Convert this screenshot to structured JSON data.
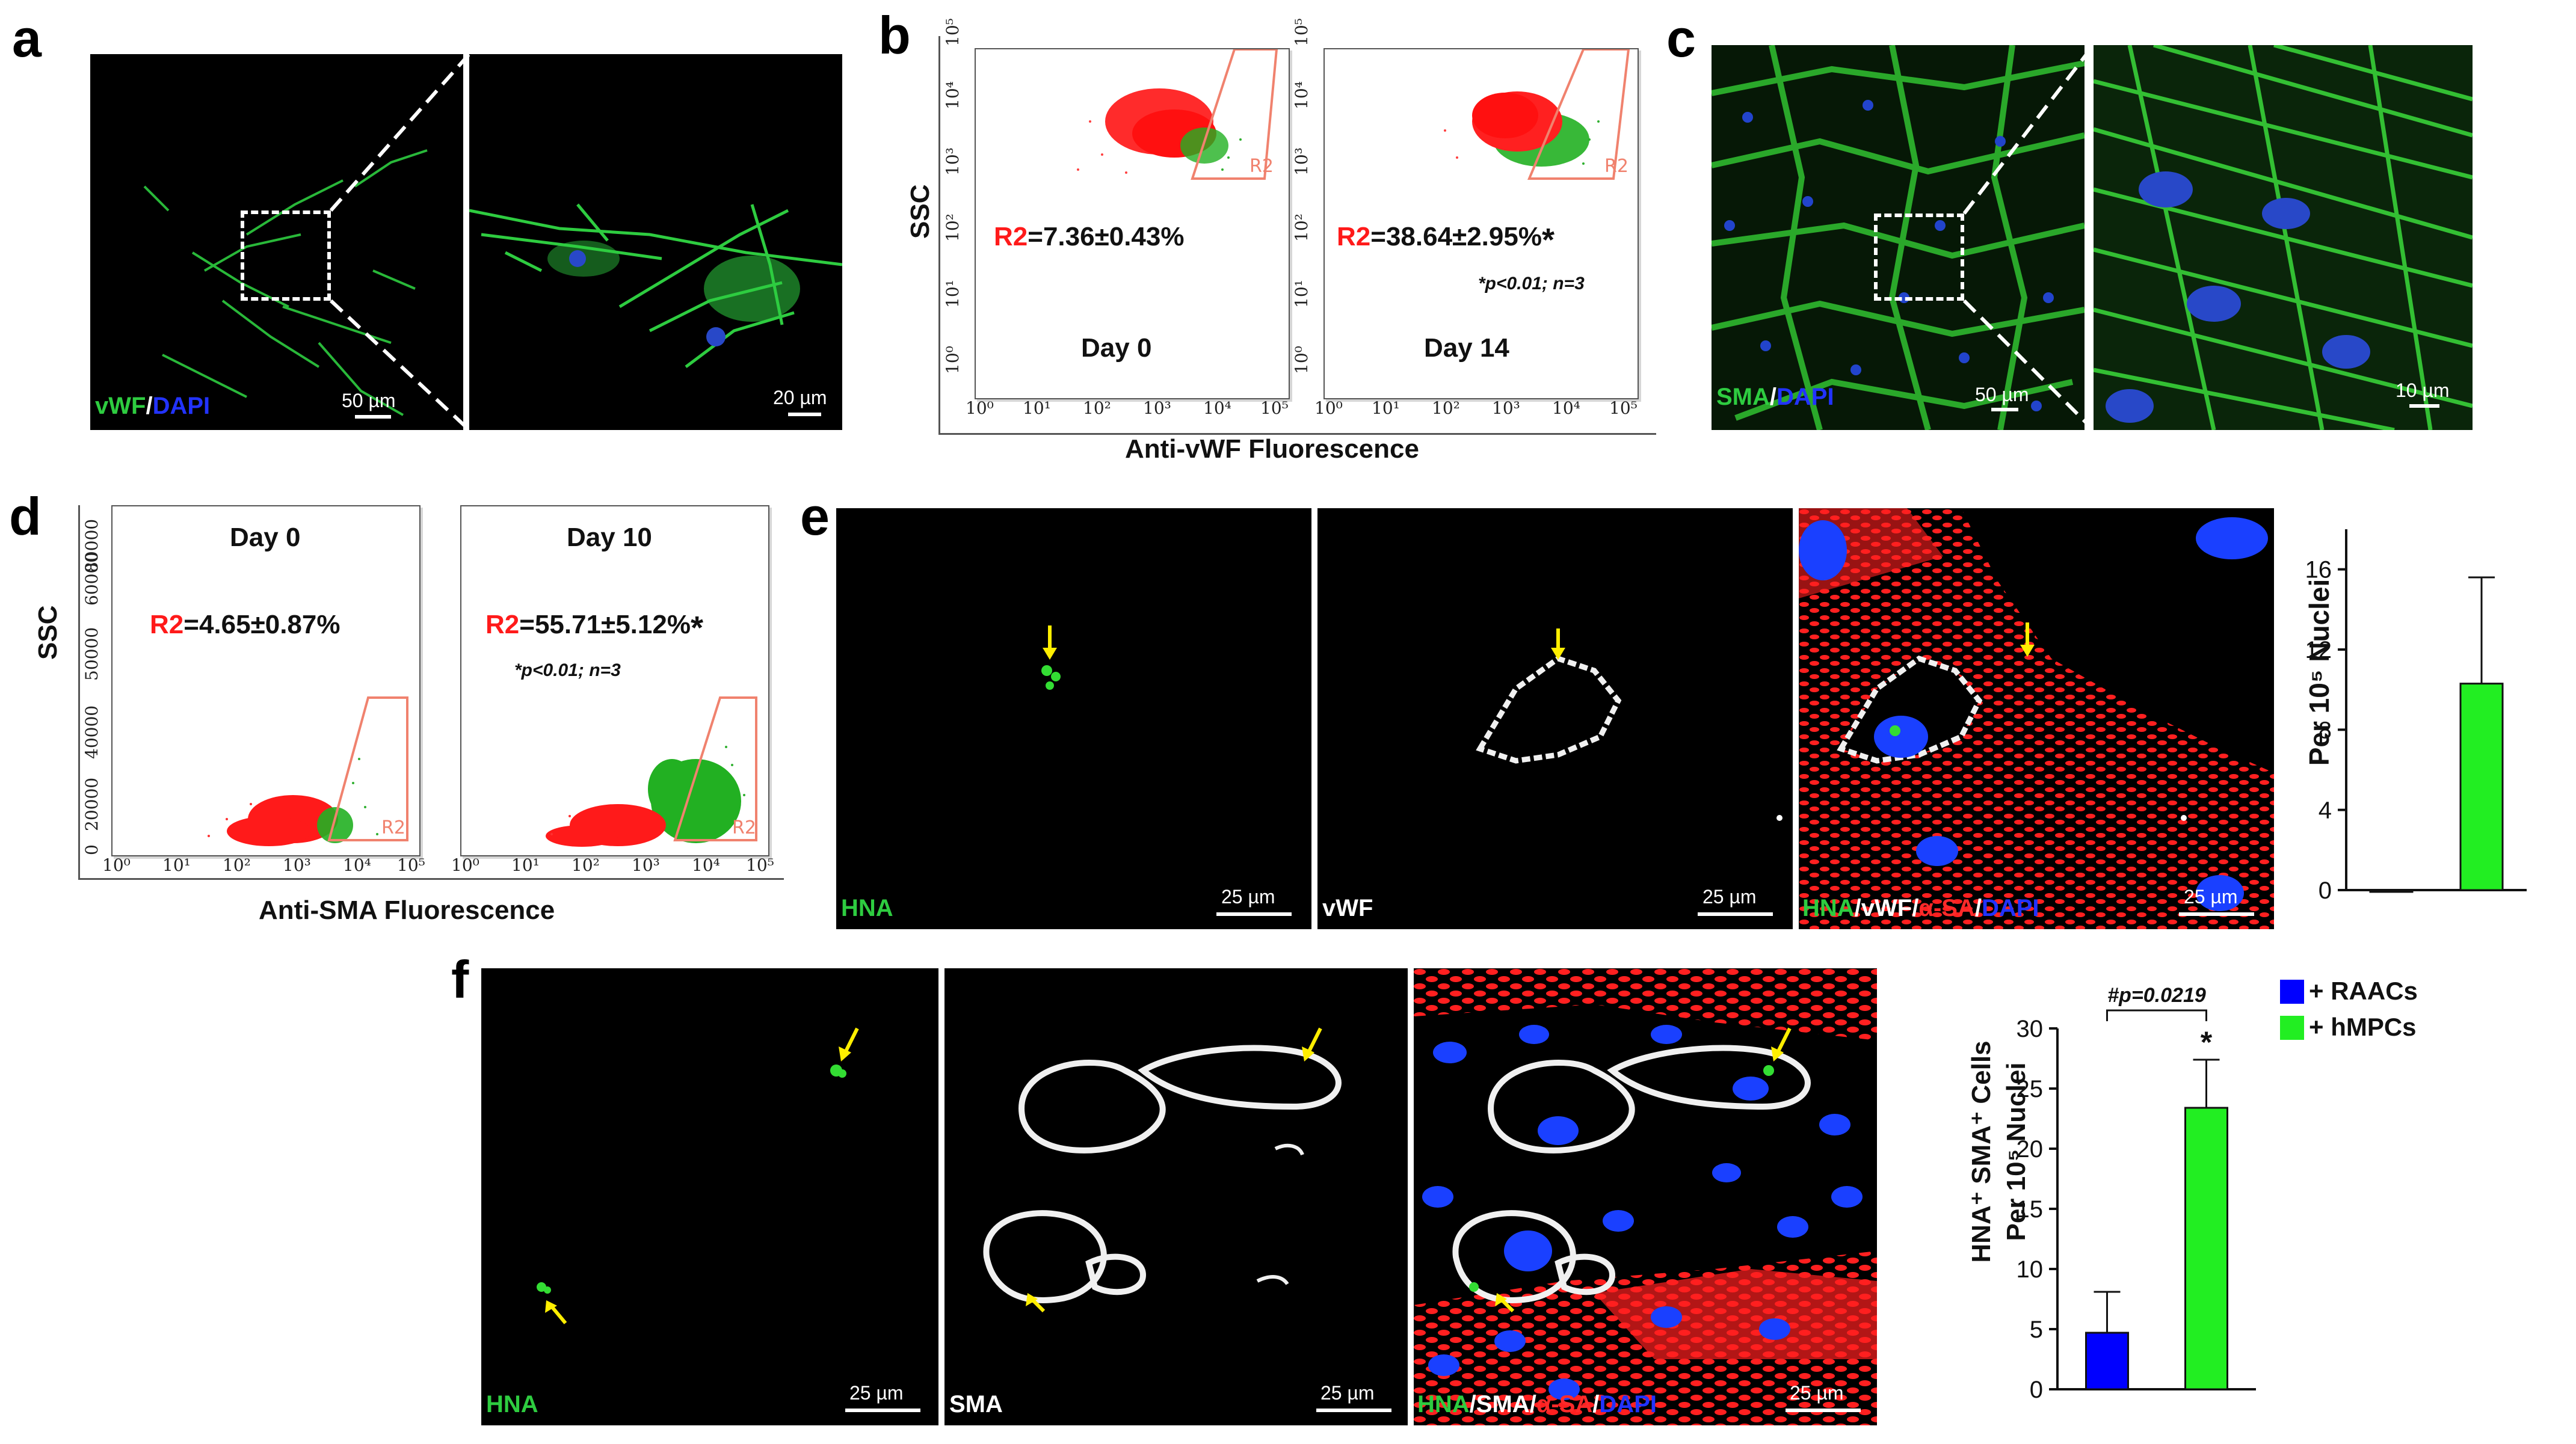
{
  "figure": {
    "panels": {
      "a": {
        "letter": "a",
        "stain": [
          {
            "text": "vWF",
            "color": "#2ecc40"
          },
          {
            "text": "/",
            "color": "#ffffff"
          },
          {
            "text": "DAPI",
            "color": "#2233ff"
          }
        ],
        "scale_left": "50 µm",
        "scale_right": "20 µm"
      },
      "b": {
        "letter": "b",
        "ylabel": "SSC",
        "xlabel": "Anti-vWF Fluorescence",
        "plots": [
          {
            "r2_prefix": "R2",
            "r2_value": "=7.36±0.43%",
            "star": "",
            "day": "Day 0",
            "note": "",
            "gate_label": "R2"
          },
          {
            "r2_prefix": "R2",
            "r2_value": "=38.64±2.95%",
            "star": "*",
            "day": "Day 14",
            "note": "*p<0.01; n=3",
            "gate_label": "R2"
          }
        ],
        "xticks": [
          "10^0",
          "10^1",
          "10^2",
          "10^3",
          "10^4",
          "10^5"
        ],
        "yticks": [
          "10^0",
          "10^1",
          "10^2",
          "10^3",
          "10^4",
          "10^5"
        ]
      },
      "c": {
        "letter": "c",
        "stain": [
          {
            "text": "SMA",
            "color": "#2ecc40"
          },
          {
            "text": "/",
            "color": "#ffffff"
          },
          {
            "text": "DAPI",
            "color": "#2233ff"
          }
        ],
        "scale_left": "50 µm",
        "scale_right": "10 µm"
      },
      "d": {
        "letter": "d",
        "ylabel": "SSC",
        "xlabel": "Anti-SMA  Fluorescence",
        "plots": [
          {
            "r2_prefix": "R2",
            "r2_value": "=4.65±0.87%",
            "star": "",
            "day": "Day 0",
            "note": "",
            "gate_label": "R2"
          },
          {
            "r2_prefix": "R2",
            "r2_value": "=55.71±5.12%",
            "star": "*",
            "day": "Day 10",
            "note": "*p<0.01; n=3",
            "gate_label": "R2"
          }
        ],
        "yticks": [
          "0",
          "20000",
          "40000",
          "60000",
          "80000"
        ],
        "xticks": [
          "10^0",
          "10^1",
          "10^2",
          "10^3",
          "10^4",
          "10^5"
        ]
      },
      "e": {
        "letter": "e",
        "images": [
          {
            "stain": [
              {
                "text": "HNA",
                "color": "#2ecc40"
              }
            ],
            "scale": "25 µm"
          },
          {
            "stain": [
              {
                "text": "vWF",
                "color": "#ffffff"
              }
            ],
            "scale": "25 µm"
          },
          {
            "stain": [
              {
                "text": "HNA",
                "color": "#2ecc40"
              },
              {
                "text": "/",
                "color": "#ffffff"
              },
              {
                "text": "vWF",
                "color": "#ffffff"
              },
              {
                "text": "/",
                "color": "#ffffff"
              },
              {
                "text": "α-SA",
                "color": "#ff2a2a"
              },
              {
                "text": "/",
                "color": "#ffffff"
              },
              {
                "text": "DAPI",
                "color": "#2233ff"
              }
            ],
            "scale": "25 µm"
          }
        ],
        "chart_ylabel": "Per 10⁵ Nuclei"
      },
      "f": {
        "letter": "f",
        "images": [
          {
            "stain": [
              {
                "text": "HNA",
                "color": "#2ecc40"
              }
            ],
            "scale": "25 µm"
          },
          {
            "stain": [
              {
                "text": "SMA",
                "color": "#ffffff"
              }
            ],
            "scale": "25 µm"
          },
          {
            "stain": [
              {
                "text": "HNA",
                "color": "#2ecc40"
              },
              {
                "text": "/",
                "color": "#ffffff"
              },
              {
                "text": "SMA",
                "color": "#ffffff"
              },
              {
                "text": "/",
                "color": "#ffffff"
              },
              {
                "text": "α-SA",
                "color": "#ff2a2a"
              },
              {
                "text": "/",
                "color": "#ffffff"
              },
              {
                "text": "DAPI",
                "color": "#2233ff"
              }
            ],
            "scale": "25 µm"
          }
        ],
        "chart_ylabel_line1": "HNA⁺ SMA⁺ Cells",
        "chart_ylabel_line2": "Per 10⁵ Nuclei",
        "pvalue": "#p=0.0219",
        "star": "*"
      }
    },
    "legend": [
      {
        "label": "+ RAACs",
        "color": "#0000ff"
      },
      {
        "label": "+ hMPCs",
        "color": "#22ee22"
      }
    ],
    "colors": {
      "r2_red": "#ff1a1a",
      "gate": "#f0826e",
      "bar_blue": "#0000ff",
      "bar_green": "#22ee22",
      "arrow": "#ffee00"
    }
  },
  "chart_data": [
    {
      "type": "bar",
      "categories": [
        "+ RAACs",
        "+ hMPCs"
      ],
      "values": [
        0,
        10.3
      ],
      "errors": [
        0,
        5.3
      ],
      "ylabel": "Per 10⁵ Nuclei",
      "ylim": [
        0,
        18
      ],
      "yticks": [
        0,
        4,
        8,
        12,
        16
      ]
    },
    {
      "type": "bar",
      "categories": [
        "+ RAACs",
        "+ hMPCs"
      ],
      "values": [
        4.7,
        23.4
      ],
      "errors": [
        3.4,
        4.0
      ],
      "ylabel": "HNA⁺ SMA⁺ Cells Per 10⁵ Nuclei",
      "ylim": [
        0,
        30
      ],
      "yticks": [
        0,
        5,
        10,
        15,
        20,
        25,
        30
      ],
      "annotations": [
        "#p=0.0219",
        "*"
      ]
    }
  ]
}
